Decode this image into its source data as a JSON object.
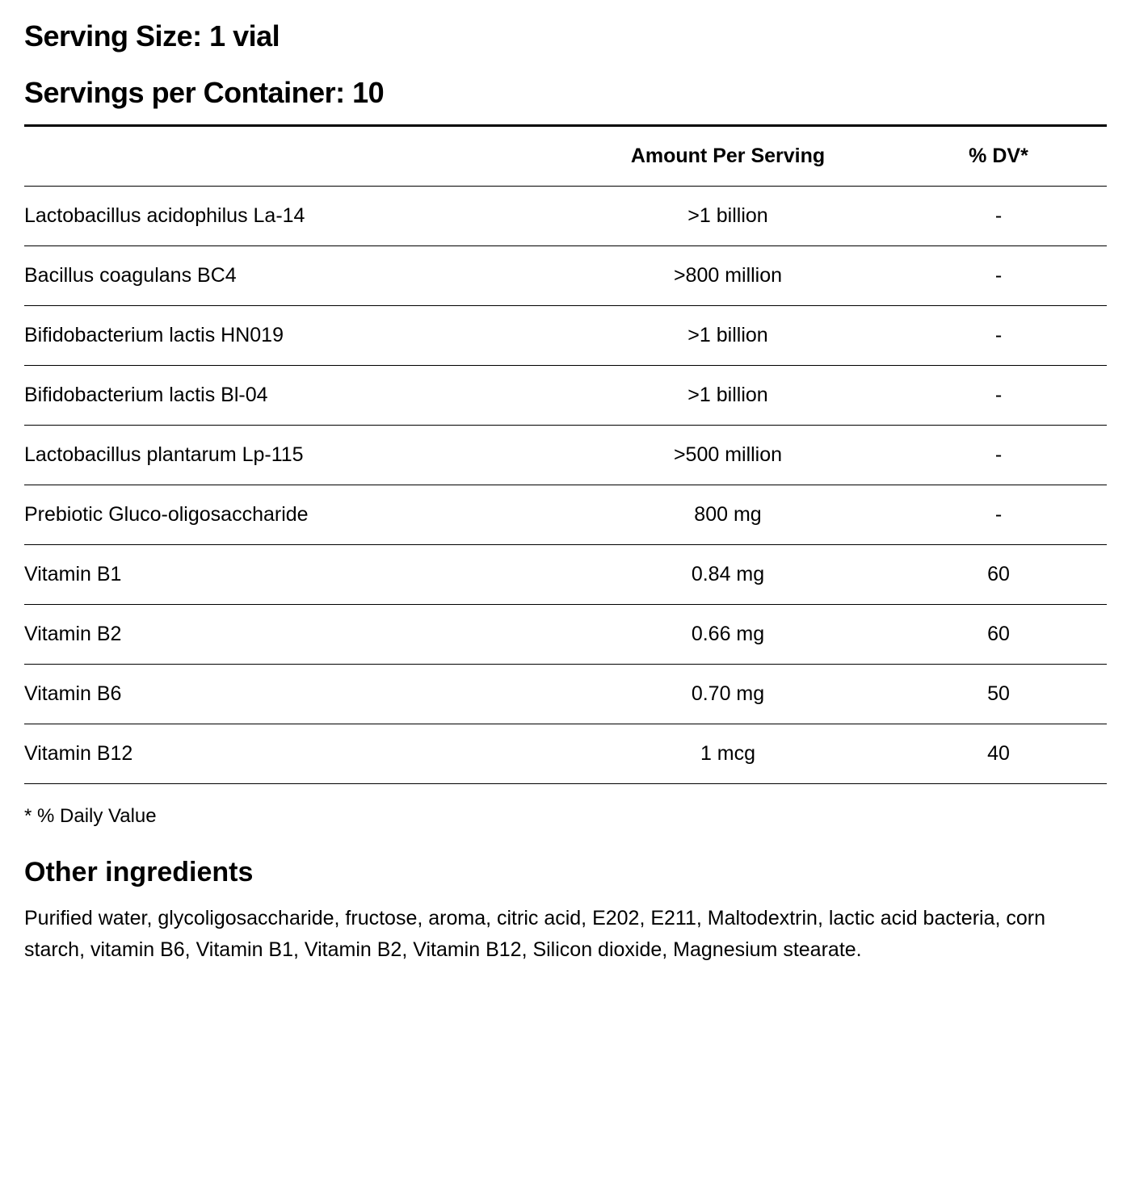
{
  "serving_size_label": "Serving Size: 1 vial",
  "servings_per_container_label": "Servings per Container: 10",
  "table": {
    "columns": {
      "name": "",
      "amount": "Amount Per Serving",
      "dv": "% DV*"
    },
    "rows": [
      {
        "name": "Lactobacillus acidophilus La-14",
        "amount": ">1 billion",
        "dv": "-"
      },
      {
        "name": "Bacillus coagulans BC4",
        "amount": ">800 million",
        "dv": "-"
      },
      {
        "name": "Bifidobacterium lactis HN019",
        "amount": ">1 billion",
        "dv": "-"
      },
      {
        "name": "Bifidobacterium lactis Bl-04",
        "amount": ">1 billion",
        "dv": "-"
      },
      {
        "name": "Lactobacillus plantarum Lp-115",
        "amount": ">500 million",
        "dv": "-"
      },
      {
        "name": "Prebiotic Gluco-oligosaccharide",
        "amount": "800 mg",
        "dv": "-"
      },
      {
        "name": "Vitamin B1",
        "amount": "0.84 mg",
        "dv": "60"
      },
      {
        "name": "Vitamin B2",
        "amount": "0.66 mg",
        "dv": "60"
      },
      {
        "name": "Vitamin B6",
        "amount": "0.70 mg",
        "dv": "50"
      },
      {
        "name": "Vitamin B12",
        "amount": "1 mcg",
        "dv": "40"
      }
    ]
  },
  "footnote": "* % Daily Value",
  "other_ingredients_heading": "Other ingredients",
  "other_ingredients_text": "Purified water, glycoligosaccharide, fructose, aroma, citric acid, E202, E211, Maltodextrin, lactic acid bacteria, corn starch, vitamin B6, Vitamin B1, Vitamin B2, Vitamin B12, Silicon dioxide, Magnesium stearate.",
  "styling": {
    "background_color": "#ffffff",
    "text_color": "#000000",
    "heading_fontsize": 36,
    "heading_fontweight": 700,
    "table_border_top_width": 3,
    "row_border_width": 1,
    "row_border_color": "#000000",
    "cell_fontsize": 25,
    "cell_padding_vertical": 22,
    "footnote_fontsize": 24,
    "subheading_fontsize": 34,
    "bodytext_fontsize": 25,
    "bodytext_lineheight": 1.55,
    "col_widths_percent": [
      50,
      30,
      20
    ]
  }
}
